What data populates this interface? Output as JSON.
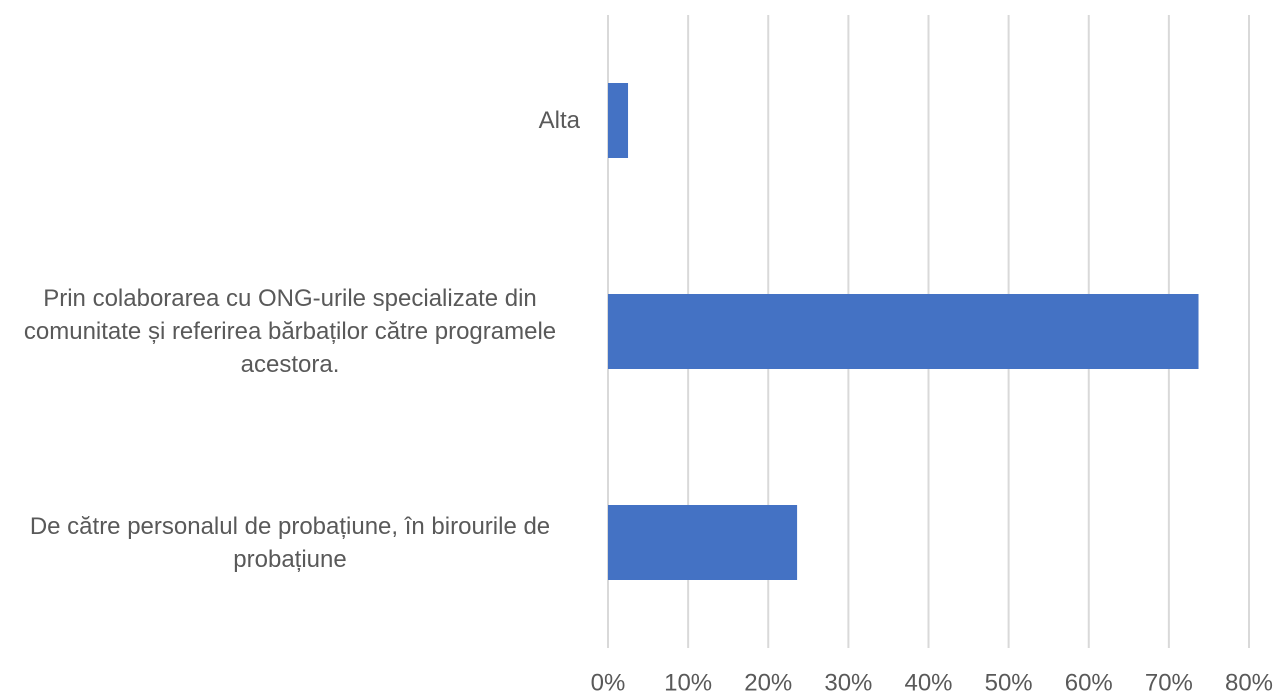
{
  "chart_data": {
    "type": "bar",
    "orientation": "horizontal",
    "categories": [
      "Alta",
      "Prin colaborarea cu ONG-urile specializate din comunitate și referirea bărbaților către programele acestora.",
      "De către personalul de probațiune, în birourile de probațiune"
    ],
    "values": [
      2.5,
      73.7,
      23.6
    ],
    "color": "#4472c4",
    "xlim": [
      0,
      80
    ],
    "xticks": [
      {
        "value": 0,
        "label": "0%"
      },
      {
        "value": 10,
        "label": "10%"
      },
      {
        "value": 20,
        "label": "20%"
      },
      {
        "value": 30,
        "label": "30%"
      },
      {
        "value": 40,
        "label": "40%"
      },
      {
        "value": 50,
        "label": "50%"
      },
      {
        "value": 60,
        "label": "60%"
      },
      {
        "value": 70,
        "label": "70%"
      },
      {
        "value": 80,
        "label": "80%"
      }
    ],
    "grid": true
  }
}
